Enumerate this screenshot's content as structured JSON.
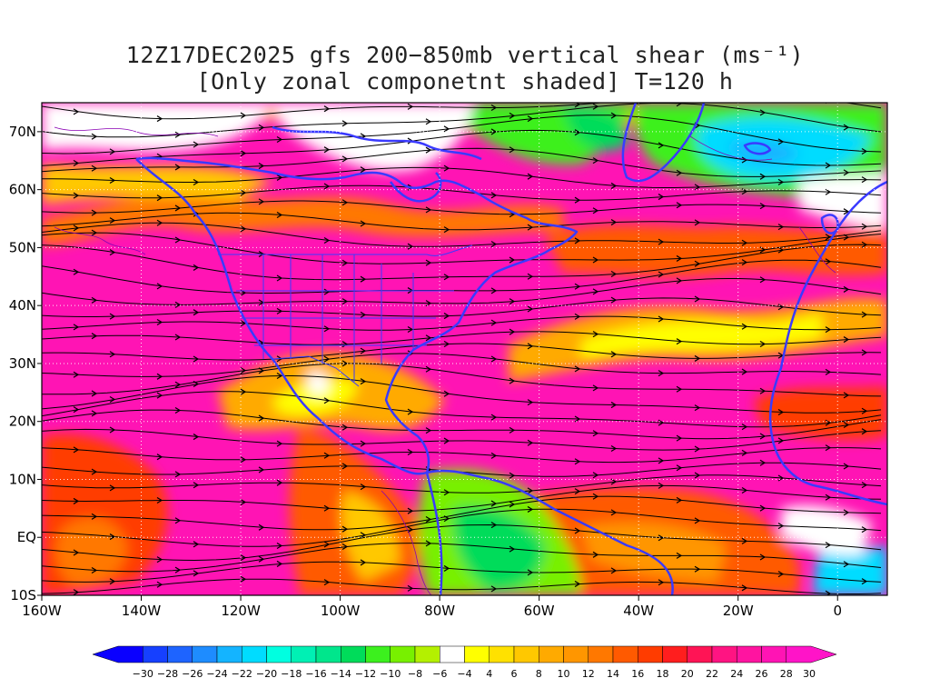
{
  "title": {
    "line1": "12Z17DEC2025 gfs 200−850mb vertical shear (ms⁻¹)",
    "line2": "[Only zonal componetnt shaded] T=120 h"
  },
  "map": {
    "lon_range": [
      -160,
      10
    ],
    "lat_range": [
      -10,
      75
    ],
    "lon_ticks": [
      {
        "value": -160,
        "label": "160W"
      },
      {
        "value": -140,
        "label": "140W"
      },
      {
        "value": -120,
        "label": "120W"
      },
      {
        "value": -100,
        "label": "100W"
      },
      {
        "value": -80,
        "label": "80W"
      },
      {
        "value": -60,
        "label": "60W"
      },
      {
        "value": -40,
        "label": "40W"
      },
      {
        "value": -20,
        "label": "20W"
      },
      {
        "value": 0,
        "label": "0"
      }
    ],
    "lat_ticks": [
      {
        "value": -10,
        "label": "10S"
      },
      {
        "value": 0,
        "label": "EQ"
      },
      {
        "value": 10,
        "label": "10N"
      },
      {
        "value": 20,
        "label": "20N"
      },
      {
        "value": 30,
        "label": "30N"
      },
      {
        "value": 40,
        "label": "40N"
      },
      {
        "value": 50,
        "label": "50N"
      },
      {
        "value": 60,
        "label": "60N"
      },
      {
        "value": 70,
        "label": "70N"
      }
    ],
    "gridlines": "dotted",
    "coastline_color": "#3a3aff",
    "streamline_color": "#000000"
  },
  "colorbar": {
    "levels": [
      -30,
      -28,
      -26,
      -24,
      -22,
      -20,
      -18,
      -16,
      -14,
      -12,
      -10,
      -8,
      -6,
      -4,
      4,
      6,
      8,
      10,
      12,
      14,
      16,
      18,
      20,
      22,
      24,
      26,
      28,
      30
    ],
    "labels": [
      "−30",
      "−28",
      "−26",
      "−24",
      "−22",
      "−20",
      "−18",
      "−16",
      "−14",
      "−12",
      "−10",
      "−8",
      "−6",
      "−4",
      "4",
      "6",
      "8",
      "10",
      "12",
      "14",
      "16",
      "18",
      "20",
      "22",
      "24",
      "26",
      "28",
      "30"
    ],
    "colors": [
      "#0a00ff",
      "#1640ff",
      "#1e64ff",
      "#1e8cff",
      "#14b4ff",
      "#00dcff",
      "#00ffe0",
      "#00f0b4",
      "#00e68c",
      "#00dc5a",
      "#3cf01e",
      "#78f000",
      "#b4f000",
      "#ffffff",
      "#ffff00",
      "#ffe100",
      "#ffc800",
      "#ffaa00",
      "#ff9600",
      "#ff7800",
      "#ff5a00",
      "#ff3c00",
      "#ff1e1e",
      "#ff1455",
      "#ff1482",
      "#ff14a0",
      "#ff14b4",
      "#ff14c8"
    ]
  }
}
